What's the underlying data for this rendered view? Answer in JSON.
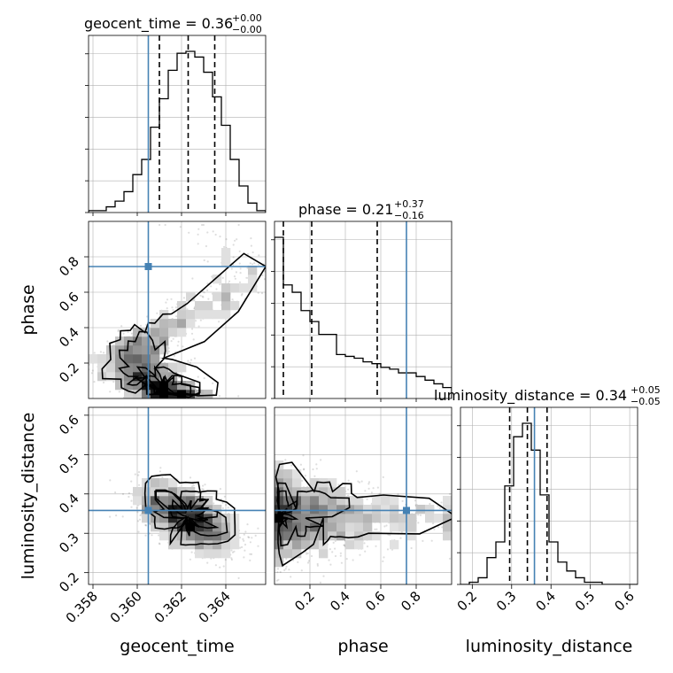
{
  "chart_data": {
    "type": "corner",
    "parameters": [
      "geocent_time",
      "phase",
      "luminosity_distance"
    ],
    "titles": [
      {
        "param": "geocent_time",
        "text": "geocent_time = 0.36",
        "plus": "+0.00",
        "minus": "−0.00"
      },
      {
        "param": "phase",
        "text": "phase = 0.21",
        "plus": "+0.37",
        "minus": "−0.16"
      },
      {
        "param": "luminosity_distance",
        "text": "luminosity_distance = 0.34",
        "plus": "+0.05",
        "minus": "−0.05"
      }
    ],
    "axis_labels": {
      "geocent_time": "geocent_time",
      "phase": "phase",
      "luminosity_distance": "luminosity_distance"
    },
    "ranges": {
      "geocent_time": [
        0.3578,
        0.3658
      ],
      "phase": [
        0.0,
        1.0
      ],
      "luminosity_distance": [
        0.17,
        0.62
      ]
    },
    "ticks": {
      "geocent_time": [
        0.358,
        0.36,
        0.362,
        0.364
      ],
      "phase": [
        0.2,
        0.4,
        0.6,
        0.8
      ],
      "luminosity_distance": [
        0.2,
        0.3,
        0.4,
        0.5,
        0.6
      ]
    },
    "tick_labels": {
      "geocent_time": [
        "0.358",
        "0.360",
        "0.362",
        "0.364"
      ],
      "phase": [
        "0.2",
        "0.4",
        "0.6",
        "0.8"
      ],
      "luminosity_distance": [
        "0.2",
        "0.3",
        "0.4",
        "0.5",
        "0.6"
      ]
    },
    "truths": {
      "geocent_time": 0.3605,
      "phase": 0.745,
      "luminosity_distance": 0.358
    },
    "quantiles": {
      "geocent_time": [
        0.361,
        0.3623,
        0.3635
      ],
      "phase": [
        0.05,
        0.21,
        0.58
      ],
      "luminosity_distance": [
        0.295,
        0.34,
        0.39
      ]
    },
    "hist1d": {
      "geocent_time": {
        "edges": [
          0.3578,
          0.3582,
          0.3586,
          0.359,
          0.3594,
          0.3598,
          0.3602,
          0.3606,
          0.361,
          0.3614,
          0.3618,
          0.3622,
          0.3626,
          0.363,
          0.3634,
          0.3638,
          0.3642,
          0.3646,
          0.365,
          0.3654,
          0.3658
        ],
        "counts": [
          1,
          1,
          3,
          6,
          11,
          20,
          28,
          45,
          60,
          75,
          84,
          85,
          82,
          74,
          61,
          46,
          28,
          14,
          5,
          1
        ]
      },
      "phase": {
        "edges": [
          0.0,
          0.05,
          0.1,
          0.15,
          0.2,
          0.25,
          0.3,
          0.35,
          0.4,
          0.45,
          0.5,
          0.55,
          0.6,
          0.65,
          0.7,
          0.75,
          0.8,
          0.85,
          0.9,
          0.95,
          1.0
        ],
        "counts": [
          88,
          62,
          58,
          48,
          42,
          35,
          35,
          24,
          23,
          22,
          20,
          19,
          17,
          16,
          14,
          14,
          12,
          10,
          8,
          6
        ]
      },
      "luminosity_distance": {
        "edges": [
          0.17,
          0.1925,
          0.215,
          0.2375,
          0.26,
          0.2825,
          0.305,
          0.3275,
          0.35,
          0.3725,
          0.395,
          0.4175,
          0.44,
          0.4625,
          0.485,
          0.5075,
          0.53,
          0.5525,
          0.575,
          0.5975,
          0.62
        ],
        "counts": [
          0,
          1,
          3,
          12,
          19,
          44,
          66,
          72,
          60,
          40,
          19,
          10,
          6,
          3,
          1,
          1,
          0,
          0,
          0,
          0
        ]
      }
    },
    "grid": true,
    "truth_color": "#4682b4",
    "contour_color": "#000000"
  }
}
